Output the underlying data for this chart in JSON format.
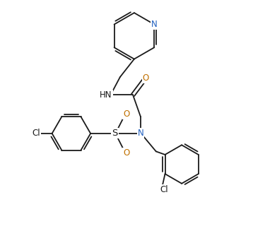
{
  "bg_color": "#ffffff",
  "bond_color": "#1a1a1a",
  "atom_colors": {
    "N": "#2060c0",
    "O": "#c07000",
    "Cl": "#1a1a1a",
    "S": "#1a1a1a"
  },
  "line_width": 1.3,
  "font_size": 8.5,
  "figsize": [
    3.58,
    3.27
  ],
  "dpi": 100,
  "xlim": [
    0,
    9
  ],
  "ylim": [
    0,
    9
  ]
}
